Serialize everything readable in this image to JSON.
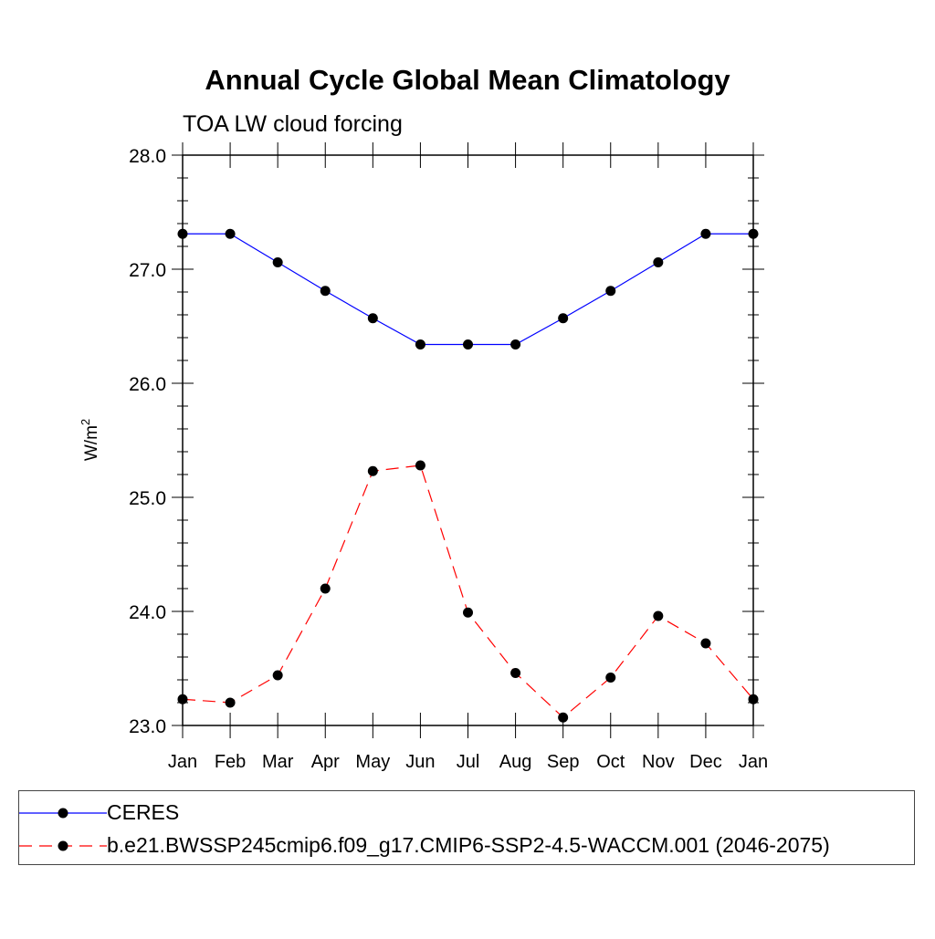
{
  "chart_data": {
    "type": "line",
    "title": "Annual Cycle Global Mean Climatology",
    "subtitle": "TOA LW cloud forcing",
    "xlabel": "",
    "ylabel": "W/m",
    "ylabel_superscript": "2",
    "categories": [
      "Jan",
      "Feb",
      "Mar",
      "Apr",
      "May",
      "Jun",
      "Jul",
      "Aug",
      "Sep",
      "Oct",
      "Nov",
      "Dec",
      "Jan"
    ],
    "ylim": [
      23.0,
      28.0
    ],
    "yticks": [
      "23.0",
      "24.0",
      "25.0",
      "26.0",
      "27.0",
      "28.0"
    ],
    "grid": false,
    "legend_position": "bottom",
    "series": [
      {
        "name": "CERES",
        "color": "#0000ff",
        "dash": "solid",
        "values": [
          27.31,
          27.31,
          27.06,
          26.81,
          26.57,
          26.34,
          26.34,
          26.34,
          26.57,
          26.81,
          27.06,
          27.31,
          27.31
        ]
      },
      {
        "name": "b.e21.BWSSP245cmip6.f09_g17.CMIP6-SSP2-4.5-WACCM.001 (2046-2075)",
        "color": "#ff0000",
        "dash": "dashed",
        "values": [
          23.23,
          23.2,
          23.44,
          24.2,
          25.23,
          25.28,
          23.99,
          23.46,
          23.07,
          23.42,
          23.96,
          23.72,
          23.23
        ]
      }
    ]
  }
}
